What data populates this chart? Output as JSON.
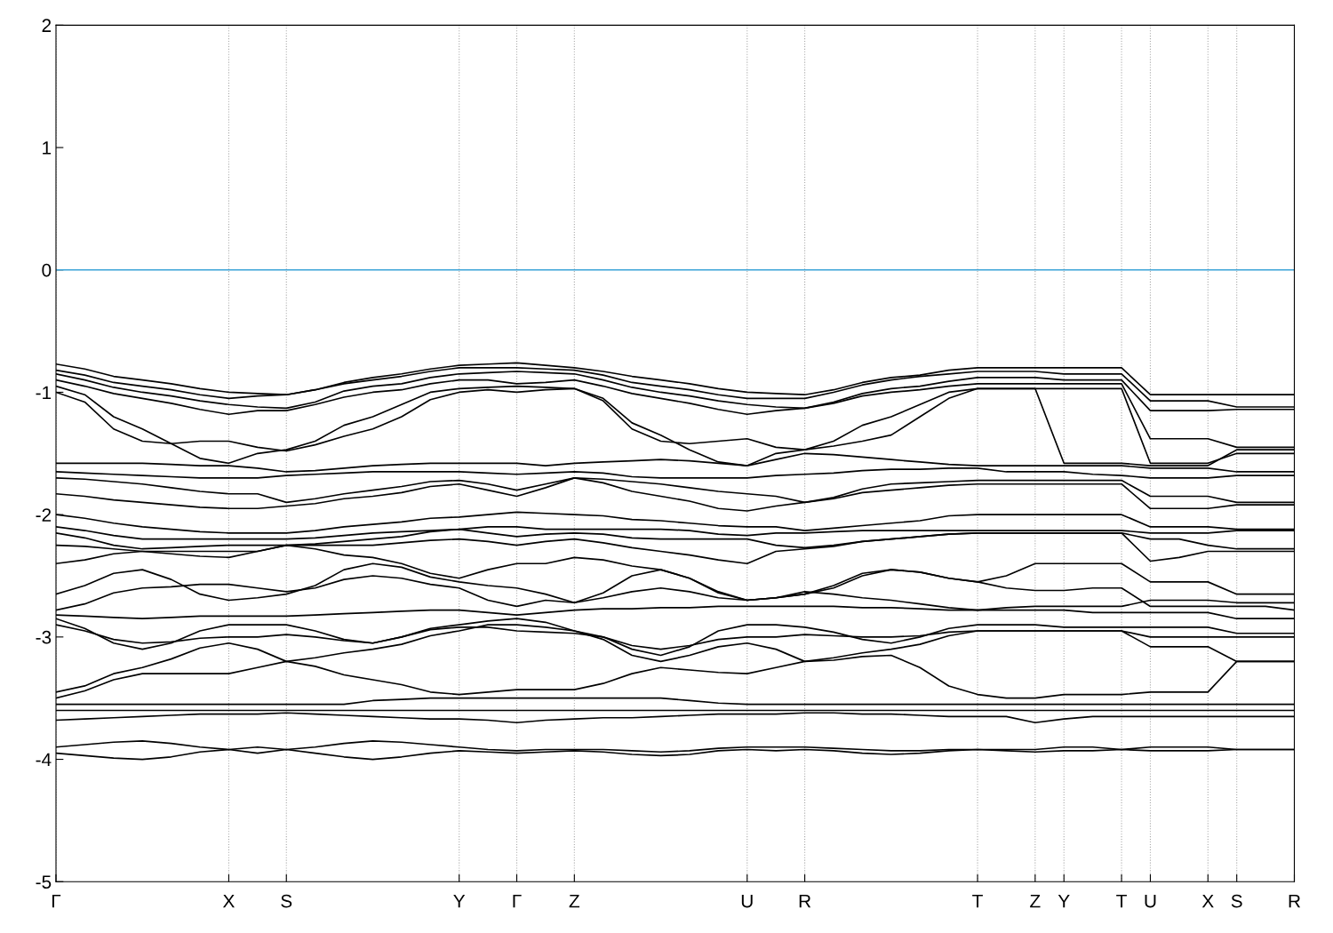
{
  "chart_data": {
    "type": "line",
    "categories": [
      "Γ",
      null,
      null,
      null,
      null,
      null,
      "X",
      null,
      "S",
      null,
      null,
      null,
      null,
      null,
      "Y",
      null,
      "Γ",
      null,
      "Z",
      null,
      null,
      null,
      null,
      null,
      "U",
      null,
      "R",
      null,
      null,
      null,
      null,
      null,
      "T",
      null,
      "Z",
      "Y",
      null,
      "T",
      "U",
      null,
      "X",
      "S",
      null,
      "R"
    ],
    "ylim": [
      -5,
      2
    ],
    "yticks": [
      -5,
      -4,
      -3,
      -2,
      -1,
      0,
      1,
      2
    ],
    "grid": "x",
    "ref_lines": [
      {
        "axis": "y",
        "value": 0,
        "color": "#3ba3d8"
      }
    ],
    "series": [
      {
        "color": "#000000",
        "values": [
          -0.77,
          -0.81,
          -0.87,
          -0.9,
          -0.93,
          -0.97,
          -1.0,
          -1.01,
          -1.02,
          -0.98,
          -0.92,
          -0.88,
          -0.85,
          -0.81,
          -0.78,
          -0.77,
          -0.76,
          -0.78,
          -0.8,
          -0.83,
          -0.87,
          -0.9,
          -0.93,
          -0.97,
          -1.0,
          -1.01,
          -1.02,
          -0.98,
          -0.92,
          -0.88,
          -0.86,
          -0.82,
          -0.8,
          -0.8,
          -0.8,
          -0.8,
          -0.8,
          -0.8,
          -1.02,
          -1.02,
          -1.02,
          -1.02,
          -1.02,
          -1.02
        ]
      },
      {
        "color": "#000000",
        "values": [
          -0.82,
          -0.86,
          -0.92,
          -0.95,
          -0.98,
          -1.02,
          -1.05,
          -1.03,
          -1.02,
          -0.98,
          -0.93,
          -0.9,
          -0.87,
          -0.83,
          -0.8,
          -0.8,
          -0.8,
          -0.81,
          -0.82,
          -0.86,
          -0.92,
          -0.95,
          -0.98,
          -1.02,
          -1.05,
          -1.05,
          -1.05,
          -1.0,
          -0.94,
          -0.9,
          -0.87,
          -0.85,
          -0.83,
          -0.83,
          -0.83,
          -0.85,
          -0.85,
          -0.85,
          -1.07,
          -1.07,
          -1.07,
          -1.12,
          -1.12,
          -1.12
        ]
      },
      {
        "color": "#000000",
        "values": [
          -0.85,
          -0.9,
          -0.96,
          -1.0,
          -1.03,
          -1.07,
          -1.1,
          -1.12,
          -1.13,
          -1.08,
          -0.99,
          -0.95,
          -0.93,
          -0.88,
          -0.85,
          -0.84,
          -0.83,
          -0.84,
          -0.85,
          -0.9,
          -0.96,
          -1.0,
          -1.03,
          -1.07,
          -1.1,
          -1.12,
          -1.13,
          -1.08,
          -1.01,
          -0.97,
          -0.95,
          -0.91,
          -0.88,
          -0.88,
          -0.88,
          -0.9,
          -0.9,
          -0.9,
          -1.15,
          -1.15,
          -1.15,
          -1.14,
          -1.14,
          -1.14
        ]
      },
      {
        "color": "#000000",
        "values": [
          -0.9,
          -0.95,
          -1.01,
          -1.05,
          -1.09,
          -1.14,
          -1.18,
          -1.15,
          -1.15,
          -1.1,
          -1.04,
          -1.0,
          -0.98,
          -0.93,
          -0.9,
          -0.9,
          -0.93,
          -0.92,
          -0.9,
          -0.95,
          -1.01,
          -1.05,
          -1.09,
          -1.14,
          -1.18,
          -1.15,
          -1.13,
          -1.09,
          -1.03,
          -1.0,
          -0.98,
          -0.95,
          -0.93,
          -0.93,
          -0.93,
          -0.93,
          -0.93,
          -0.93,
          -1.38,
          -1.38,
          -1.38,
          -1.45,
          -1.45,
          -1.45
        ]
      },
      {
        "color": "#000000",
        "values": [
          -0.95,
          -1.02,
          -1.2,
          -1.3,
          -1.42,
          -1.54,
          -1.58,
          -1.5,
          -1.47,
          -1.4,
          -1.27,
          -1.2,
          -1.1,
          -1.0,
          -0.97,
          -0.96,
          -0.95,
          -0.96,
          -0.97,
          -1.05,
          -1.25,
          -1.35,
          -1.47,
          -1.57,
          -1.6,
          -1.5,
          -1.47,
          -1.4,
          -1.27,
          -1.2,
          -1.1,
          -1.0,
          -0.97,
          -0.97,
          -0.97,
          -0.97,
          -0.97,
          -0.97,
          -1.58,
          -1.58,
          -1.58,
          -1.5,
          -1.5,
          -1.5
        ]
      },
      {
        "color": "#000000",
        "values": [
          -1.0,
          -1.08,
          -1.3,
          -1.4,
          -1.42,
          -1.4,
          -1.4,
          -1.45,
          -1.48,
          -1.43,
          -1.36,
          -1.3,
          -1.2,
          -1.06,
          -1.0,
          -0.98,
          -1.0,
          -0.98,
          -0.97,
          -1.07,
          -1.3,
          -1.4,
          -1.42,
          -1.4,
          -1.38,
          -1.45,
          -1.47,
          -1.44,
          -1.4,
          -1.35,
          -1.2,
          -1.05,
          -0.97,
          -0.97,
          -0.97,
          -1.58,
          -1.58,
          -1.58,
          -1.6,
          -1.6,
          -1.6,
          -1.47,
          -1.47,
          -1.47
        ]
      },
      {
        "color": "#000000",
        "values": [
          -1.58,
          -1.58,
          -1.58,
          -1.58,
          -1.59,
          -1.6,
          -1.6,
          -1.62,
          -1.65,
          -1.64,
          -1.62,
          -1.6,
          -1.59,
          -1.58,
          -1.58,
          -1.58,
          -1.58,
          -1.6,
          -1.58,
          -1.57,
          -1.56,
          -1.55,
          -1.56,
          -1.58,
          -1.6,
          -1.55,
          -1.5,
          -1.51,
          -1.53,
          -1.55,
          -1.57,
          -1.59,
          -1.6,
          -1.6,
          -1.6,
          -1.6,
          -1.6,
          -1.6,
          -1.62,
          -1.62,
          -1.62,
          -1.65,
          -1.65,
          -1.65
        ]
      },
      {
        "color": "#000000",
        "values": [
          -1.65,
          -1.66,
          -1.67,
          -1.68,
          -1.69,
          -1.7,
          -1.7,
          -1.7,
          -1.68,
          -1.67,
          -1.66,
          -1.65,
          -1.65,
          -1.65,
          -1.65,
          -1.66,
          -1.67,
          -1.66,
          -1.65,
          -1.66,
          -1.69,
          -1.7,
          -1.7,
          -1.7,
          -1.7,
          -1.68,
          -1.67,
          -1.66,
          -1.64,
          -1.63,
          -1.63,
          -1.62,
          -1.62,
          -1.65,
          -1.65,
          -1.65,
          -1.67,
          -1.68,
          -1.7,
          -1.7,
          -1.7,
          -1.68,
          -1.68,
          -1.68
        ]
      },
      {
        "color": "#000000",
        "values": [
          -1.7,
          -1.71,
          -1.73,
          -1.75,
          -1.78,
          -1.81,
          -1.83,
          -1.83,
          -1.9,
          -1.87,
          -1.83,
          -1.8,
          -1.77,
          -1.73,
          -1.72,
          -1.75,
          -1.8,
          -1.75,
          -1.7,
          -1.71,
          -1.73,
          -1.75,
          -1.78,
          -1.81,
          -1.83,
          -1.85,
          -1.9,
          -1.86,
          -1.79,
          -1.75,
          -1.74,
          -1.73,
          -1.72,
          -1.72,
          -1.72,
          -1.72,
          -1.72,
          -1.72,
          -1.85,
          -1.85,
          -1.85,
          -1.9,
          -1.9,
          -1.9
        ]
      },
      {
        "color": "#000000",
        "values": [
          -1.83,
          -1.85,
          -1.88,
          -1.9,
          -1.92,
          -1.94,
          -1.95,
          -1.95,
          -1.93,
          -1.91,
          -1.87,
          -1.85,
          -1.82,
          -1.77,
          -1.75,
          -1.8,
          -1.85,
          -1.78,
          -1.7,
          -1.74,
          -1.81,
          -1.85,
          -1.89,
          -1.95,
          -1.97,
          -1.93,
          -1.9,
          -1.87,
          -1.82,
          -1.8,
          -1.78,
          -1.76,
          -1.75,
          -1.75,
          -1.75,
          -1.75,
          -1.75,
          -1.75,
          -1.95,
          -1.95,
          -1.95,
          -1.92,
          -1.92,
          -1.92
        ]
      },
      {
        "color": "#000000",
        "values": [
          -2.0,
          -2.03,
          -2.07,
          -2.1,
          -2.12,
          -2.14,
          -2.15,
          -2.15,
          -2.15,
          -2.13,
          -2.1,
          -2.08,
          -2.06,
          -2.03,
          -2.02,
          -2.0,
          -1.98,
          -1.99,
          -2.0,
          -2.01,
          -2.04,
          -2.05,
          -2.07,
          -2.09,
          -2.1,
          -2.1,
          -2.13,
          -2.11,
          -2.09,
          -2.07,
          -2.05,
          -2.01,
          -2.0,
          -2.0,
          -2.0,
          -2.0,
          -2.0,
          -2.0,
          -2.1,
          -2.1,
          -2.1,
          -2.12,
          -2.12,
          -2.12
        ]
      },
      {
        "color": "#000000",
        "values": [
          -2.1,
          -2.13,
          -2.17,
          -2.2,
          -2.2,
          -2.2,
          -2.2,
          -2.2,
          -2.2,
          -2.19,
          -2.17,
          -2.15,
          -2.14,
          -2.13,
          -2.12,
          -2.1,
          -2.1,
          -2.12,
          -2.12,
          -2.12,
          -2.12,
          -2.12,
          -2.13,
          -2.16,
          -2.17,
          -2.15,
          -2.15,
          -2.14,
          -2.13,
          -2.13,
          -2.13,
          -2.13,
          -2.13,
          -2.13,
          -2.13,
          -2.13,
          -2.13,
          -2.13,
          -2.15,
          -2.15,
          -2.15,
          -2.13,
          -2.13,
          -2.13
        ]
      },
      {
        "color": "#000000",
        "values": [
          -2.15,
          -2.19,
          -2.25,
          -2.28,
          -2.27,
          -2.26,
          -2.25,
          -2.25,
          -2.25,
          -2.24,
          -2.22,
          -2.2,
          -2.18,
          -2.14,
          -2.12,
          -2.15,
          -2.18,
          -2.16,
          -2.15,
          -2.16,
          -2.19,
          -2.2,
          -2.2,
          -2.2,
          -2.2,
          -2.25,
          -2.27,
          -2.25,
          -2.22,
          -2.2,
          -2.18,
          -2.16,
          -2.15,
          -2.15,
          -2.15,
          -2.15,
          -2.15,
          -2.15,
          -2.2,
          -2.2,
          -2.25,
          -2.28,
          -2.28,
          -2.28
        ]
      },
      {
        "color": "#000000",
        "values": [
          -2.25,
          -2.26,
          -2.28,
          -2.3,
          -2.32,
          -2.34,
          -2.35,
          -2.3,
          -2.25,
          -2.25,
          -2.25,
          -2.25,
          -2.23,
          -2.21,
          -2.2,
          -2.22,
          -2.25,
          -2.22,
          -2.2,
          -2.23,
          -2.27,
          -2.3,
          -2.33,
          -2.37,
          -2.4,
          -2.3,
          -2.28,
          -2.26,
          -2.22,
          -2.2,
          -2.18,
          -2.16,
          -2.15,
          -2.15,
          -2.15,
          -2.15,
          -2.15,
          -2.15,
          -2.38,
          -2.35,
          -2.3,
          -2.3,
          -2.3,
          -2.3
        ]
      },
      {
        "color": "#000000",
        "values": [
          -2.4,
          -2.37,
          -2.32,
          -2.3,
          -2.3,
          -2.3,
          -2.3,
          -2.3,
          -2.25,
          -2.28,
          -2.33,
          -2.35,
          -2.4,
          -2.48,
          -2.52,
          -2.45,
          -2.4,
          -2.4,
          -2.35,
          -2.37,
          -2.42,
          -2.45,
          -2.52,
          -2.63,
          -2.7,
          -2.68,
          -2.65,
          -2.6,
          -2.5,
          -2.45,
          -2.47,
          -2.52,
          -2.55,
          -2.5,
          -2.4,
          -2.4,
          -2.4,
          -2.4,
          -2.55,
          -2.55,
          -2.55,
          -2.65,
          -2.65,
          -2.65
        ]
      },
      {
        "color": "#000000",
        "values": [
          -2.65,
          -2.58,
          -2.48,
          -2.45,
          -2.53,
          -2.65,
          -2.7,
          -2.68,
          -2.65,
          -2.58,
          -2.45,
          -2.4,
          -2.43,
          -2.51,
          -2.55,
          -2.58,
          -2.6,
          -2.65,
          -2.72,
          -2.64,
          -2.5,
          -2.45,
          -2.52,
          -2.64,
          -2.7,
          -2.68,
          -2.65,
          -2.58,
          -2.48,
          -2.45,
          -2.47,
          -2.52,
          -2.55,
          -2.6,
          -2.62,
          -2.62,
          -2.6,
          -2.6,
          -2.75,
          -2.75,
          -2.75,
          -2.75,
          -2.75,
          -2.78
        ]
      },
      {
        "color": "#000000",
        "values": [
          -2.78,
          -2.73,
          -2.64,
          -2.6,
          -2.59,
          -2.57,
          -2.57,
          -2.6,
          -2.63,
          -2.6,
          -2.53,
          -2.5,
          -2.52,
          -2.57,
          -2.6,
          -2.7,
          -2.75,
          -2.7,
          -2.72,
          -2.68,
          -2.63,
          -2.6,
          -2.63,
          -2.68,
          -2.7,
          -2.68,
          -2.63,
          -2.65,
          -2.68,
          -2.7,
          -2.73,
          -2.76,
          -2.78,
          -2.76,
          -2.75,
          -2.75,
          -2.75,
          -2.75,
          -2.7,
          -2.7,
          -2.7,
          -2.72,
          -2.72,
          -2.72
        ]
      },
      {
        "color": "#000000",
        "values": [
          -2.82,
          -2.83,
          -2.84,
          -2.85,
          -2.84,
          -2.83,
          -2.83,
          -2.83,
          -2.83,
          -2.82,
          -2.81,
          -2.8,
          -2.79,
          -2.78,
          -2.78,
          -2.8,
          -2.82,
          -2.8,
          -2.78,
          -2.77,
          -2.77,
          -2.76,
          -2.76,
          -2.75,
          -2.75,
          -2.75,
          -2.75,
          -2.75,
          -2.76,
          -2.76,
          -2.77,
          -2.78,
          -2.78,
          -2.78,
          -2.78,
          -2.78,
          -2.8,
          -2.8,
          -2.8,
          -2.8,
          -2.8,
          -2.85,
          -2.85,
          -2.85
        ]
      },
      {
        "color": "#000000",
        "values": [
          -2.85,
          -2.93,
          -3.05,
          -3.1,
          -3.05,
          -2.95,
          -2.9,
          -2.9,
          -2.9,
          -2.95,
          -3.02,
          -3.05,
          -3.0,
          -2.93,
          -2.9,
          -2.87,
          -2.85,
          -2.88,
          -2.95,
          -3.0,
          -3.1,
          -3.15,
          -3.08,
          -2.95,
          -2.9,
          -2.9,
          -2.92,
          -2.96,
          -3.02,
          -3.05,
          -3.0,
          -2.93,
          -2.9,
          -2.9,
          -2.9,
          -2.92,
          -2.92,
          -2.92,
          -2.92,
          -2.92,
          -2.92,
          -2.97,
          -2.97,
          -2.97
        ]
      },
      {
        "color": "#000000",
        "values": [
          -2.9,
          -2.95,
          -3.02,
          -3.05,
          -3.04,
          -3.01,
          -3.0,
          -3.0,
          -2.98,
          -3.0,
          -3.03,
          -3.05,
          -3.0,
          -2.94,
          -2.92,
          -2.92,
          -2.95,
          -2.96,
          -2.97,
          -3.0,
          -3.07,
          -3.1,
          -3.07,
          -3.02,
          -3.0,
          -3.0,
          -2.98,
          -2.99,
          -3.0,
          -3.0,
          -2.99,
          -2.96,
          -2.95,
          -2.95,
          -2.95,
          -2.95,
          -2.95,
          -2.95,
          -3.0,
          -3.0,
          -3.0,
          -3.0,
          -3.0,
          -3.0
        ]
      },
      {
        "color": "#000000",
        "values": [
          -3.45,
          -3.4,
          -3.3,
          -3.25,
          -3.18,
          -3.09,
          -3.05,
          -3.1,
          -3.2,
          -3.17,
          -3.13,
          -3.1,
          -3.06,
          -2.99,
          -2.95,
          -2.9,
          -2.9,
          -2.92,
          -2.95,
          -3.02,
          -3.15,
          -3.2,
          -3.15,
          -3.08,
          -3.05,
          -3.1,
          -3.2,
          -3.17,
          -3.13,
          -3.1,
          -3.06,
          -2.99,
          -2.95,
          -2.95,
          -2.95,
          -2.95,
          -2.95,
          -2.95,
          -3.08,
          -3.08,
          -3.08,
          -3.2,
          -3.2,
          -3.2
        ]
      },
      {
        "color": "#000000",
        "values": [
          -3.5,
          -3.44,
          -3.35,
          -3.3,
          -3.3,
          -3.3,
          -3.3,
          -3.25,
          -3.2,
          -3.24,
          -3.31,
          -3.35,
          -3.39,
          -3.45,
          -3.47,
          -3.45,
          -3.43,
          -3.43,
          -3.43,
          -3.38,
          -3.3,
          -3.25,
          -3.27,
          -3.29,
          -3.3,
          -3.25,
          -3.2,
          -3.19,
          -3.16,
          -3.15,
          -3.25,
          -3.4,
          -3.47,
          -3.5,
          -3.5,
          -3.47,
          -3.47,
          -3.47,
          -3.45,
          -3.45,
          -3.45,
          -3.2,
          -3.2,
          -3.2
        ]
      },
      {
        "color": "#000000",
        "values": [
          -3.55,
          -3.55,
          -3.55,
          -3.55,
          -3.55,
          -3.55,
          -3.55,
          -3.55,
          -3.55,
          -3.55,
          -3.55,
          -3.52,
          -3.51,
          -3.5,
          -3.5,
          -3.5,
          -3.5,
          -3.5,
          -3.5,
          -3.5,
          -3.5,
          -3.5,
          -3.52,
          -3.54,
          -3.55,
          -3.55,
          -3.55,
          -3.55,
          -3.55,
          -3.55,
          -3.55,
          -3.55,
          -3.55,
          -3.55,
          -3.55,
          -3.55,
          -3.55,
          -3.55,
          -3.55,
          -3.55,
          -3.55,
          -3.55,
          -3.55,
          -3.55
        ]
      },
      {
        "color": "#000000",
        "values": [
          -3.6,
          -3.6,
          -3.6,
          -3.6,
          -3.6,
          -3.6,
          -3.6,
          -3.6,
          -3.6,
          -3.6,
          -3.6,
          -3.6,
          -3.6,
          -3.6,
          -3.6,
          -3.6,
          -3.6,
          -3.6,
          -3.6,
          -3.6,
          -3.6,
          -3.6,
          -3.6,
          -3.6,
          -3.6,
          -3.6,
          -3.6,
          -3.6,
          -3.6,
          -3.6,
          -3.6,
          -3.6,
          -3.6,
          -3.6,
          -3.6,
          -3.6,
          -3.6,
          -3.6,
          -3.6,
          -3.6,
          -3.6,
          -3.6,
          -3.6,
          -3.6
        ]
      },
      {
        "color": "#000000",
        "values": [
          -3.68,
          -3.67,
          -3.66,
          -3.65,
          -3.64,
          -3.63,
          -3.63,
          -3.63,
          -3.62,
          -3.63,
          -3.64,
          -3.65,
          -3.66,
          -3.67,
          -3.67,
          -3.68,
          -3.7,
          -3.68,
          -3.67,
          -3.66,
          -3.66,
          -3.65,
          -3.64,
          -3.63,
          -3.63,
          -3.63,
          -3.62,
          -3.62,
          -3.63,
          -3.63,
          -3.64,
          -3.65,
          -3.65,
          -3.65,
          -3.7,
          -3.67,
          -3.65,
          -3.65,
          -3.65,
          -3.65,
          -3.65,
          -3.65,
          -3.65,
          -3.65
        ]
      },
      {
        "color": "#000000",
        "values": [
          -3.9,
          -3.88,
          -3.86,
          -3.85,
          -3.87,
          -3.9,
          -3.92,
          -3.9,
          -3.92,
          -3.9,
          -3.87,
          -3.85,
          -3.86,
          -3.88,
          -3.9,
          -3.92,
          -3.93,
          -3.92,
          -3.92,
          -3.92,
          -3.93,
          -3.94,
          -3.93,
          -3.91,
          -3.9,
          -3.9,
          -3.9,
          -3.91,
          -3.92,
          -3.93,
          -3.93,
          -3.92,
          -3.92,
          -3.92,
          -3.92,
          -3.9,
          -3.9,
          -3.92,
          -3.9,
          -3.9,
          -3.9,
          -3.92,
          -3.92,
          -3.92
        ]
      },
      {
        "color": "#000000",
        "values": [
          -3.95,
          -3.97,
          -3.99,
          -4.0,
          -3.98,
          -3.94,
          -3.92,
          -3.95,
          -3.92,
          -3.95,
          -3.98,
          -4.0,
          -3.98,
          -3.95,
          -3.93,
          -3.94,
          -3.95,
          -3.94,
          -3.93,
          -3.94,
          -3.96,
          -3.97,
          -3.96,
          -3.93,
          -3.92,
          -3.93,
          -3.92,
          -3.93,
          -3.95,
          -3.96,
          -3.95,
          -3.93,
          -3.92,
          -3.93,
          -3.94,
          -3.93,
          -3.93,
          -3.92,
          -3.93,
          -3.93,
          -3.93,
          -3.92,
          -3.92,
          -3.92
        ]
      }
    ]
  }
}
